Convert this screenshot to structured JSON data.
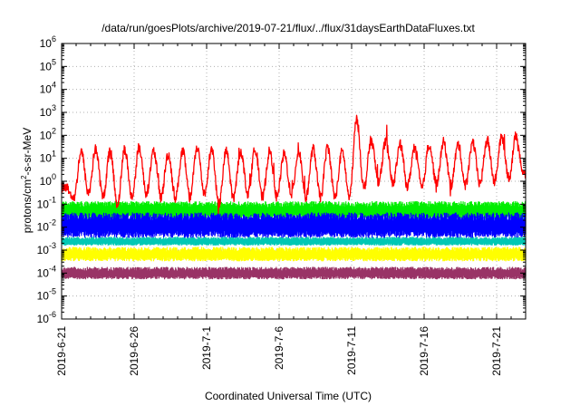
{
  "chart_data": {
    "type": "line",
    "title": "/data/run/goesPlots/archive/2019-07-21/flux/../flux/31daysEarthDataFluxes.txt",
    "xlabel": "Coordinated Universal Time (UTC)",
    "ylabel_main": "protons/cm",
    "ylabel_sup": "2",
    "ylabel_rest": "-s-sr-MeV",
    "y_scale": "log",
    "ylim": [
      1e-06,
      1000000.0
    ],
    "y_ticks": [
      {
        "base": "10",
        "exp": "6"
      },
      {
        "base": "10",
        "exp": "5"
      },
      {
        "base": "10",
        "exp": "4"
      },
      {
        "base": "10",
        "exp": "3"
      },
      {
        "base": "10",
        "exp": "2"
      },
      {
        "base": "10",
        "exp": "1"
      },
      {
        "base": "10",
        "exp": "0"
      },
      {
        "base": "10",
        "exp": "-1"
      },
      {
        "base": "10",
        "exp": "-2"
      },
      {
        "base": "10",
        "exp": "-3"
      },
      {
        "base": "10",
        "exp": "-4"
      },
      {
        "base": "10",
        "exp": "-5"
      },
      {
        "base": "10",
        "exp": "-6"
      }
    ],
    "xlim": [
      "2019-06-21",
      "2019-07-23"
    ],
    "x_ticks": [
      "2019-6-21",
      "2019-6-26",
      "2019-7-1",
      "2019-7-6",
      "2019-7-11",
      "2019-7-16",
      "2019-7-21"
    ],
    "grid": true,
    "colors": [
      "#ff0000",
      "#00ee00",
      "#0000ff",
      "#00c8b4",
      "#ffff00",
      "#993366"
    ],
    "series": [
      {
        "color": "#993366",
        "level_low": 5e-05,
        "level_high": 0.0002,
        "x": [
          "2019-06-21",
          "2019-07-23"
        ],
        "y": [
          0.0001,
          0.0001
        ]
      },
      {
        "color": "#ffff00",
        "level_low": 0.0003,
        "level_high": 0.0015,
        "x": [
          "2019-06-21",
          "2019-07-23"
        ],
        "y": [
          0.0007,
          0.0007
        ]
      },
      {
        "color": "#00c8b4",
        "level_low": 0.0015,
        "level_high": 0.004,
        "x": [
          "2019-06-21",
          "2019-07-23"
        ],
        "y": [
          0.0025,
          0.0025
        ]
      },
      {
        "color": "#00ee00",
        "level_low": 0.02,
        "level_high": 0.15,
        "x": [
          "2019-06-21",
          "2019-07-23"
        ],
        "y": [
          0.06,
          0.06
        ]
      },
      {
        "color": "#0000ff",
        "level_low": 0.003,
        "level_high": 0.05,
        "x": [
          "2019-06-21",
          "2019-07-23"
        ],
        "y": [
          0.01,
          0.01
        ]
      },
      {
        "color": "#ff0000",
        "x": [
          "2019-06-21",
          "2019-06-21",
          "2019-06-22",
          "2019-06-22",
          "2019-06-23",
          "2019-06-23",
          "2019-06-24",
          "2019-06-24",
          "2019-06-25",
          "2019-06-25",
          "2019-06-26",
          "2019-06-26",
          "2019-06-27",
          "2019-06-27",
          "2019-06-28",
          "2019-06-28",
          "2019-06-29",
          "2019-06-29",
          "2019-06-30",
          "2019-06-30",
          "2019-07-01",
          "2019-07-01",
          "2019-07-02",
          "2019-07-02",
          "2019-07-03",
          "2019-07-03",
          "2019-07-04",
          "2019-07-04",
          "2019-07-05",
          "2019-07-05",
          "2019-07-06",
          "2019-07-06",
          "2019-07-07",
          "2019-07-07",
          "2019-07-08",
          "2019-07-08",
          "2019-07-09",
          "2019-07-09",
          "2019-07-10",
          "2019-07-10",
          "2019-07-11",
          "2019-07-11",
          "2019-07-12",
          "2019-07-12",
          "2019-07-13",
          "2019-07-13",
          "2019-07-14",
          "2019-07-14",
          "2019-07-15",
          "2019-07-15",
          "2019-07-16",
          "2019-07-16",
          "2019-07-17",
          "2019-07-17",
          "2019-07-18",
          "2019-07-18",
          "2019-07-19",
          "2019-07-19",
          "2019-07-20",
          "2019-07-20",
          "2019-07-21",
          "2019-07-21",
          "2019-07-22",
          "2019-07-22"
        ],
        "y": [
          0.5,
          0.2,
          20,
          0.3,
          25,
          0.2,
          20,
          0.1,
          25,
          0.2,
          30,
          0.3,
          20,
          0.2,
          15,
          0.2,
          20,
          0.2,
          30,
          0.3,
          25,
          0.1,
          20,
          0.2,
          20,
          0.3,
          25,
          0.2,
          20,
          0.2,
          15,
          0.3,
          20,
          0.2,
          25,
          0.2,
          30,
          0.2,
          20,
          0.2,
          500,
          0.5,
          60,
          1,
          50,
          0.8,
          40,
          0.6,
          30,
          0.5,
          40,
          0.8,
          50,
          0.7,
          40,
          0.7,
          50,
          0.8,
          60,
          1,
          80,
          1.5,
          100,
          2
        ]
      }
    ]
  }
}
